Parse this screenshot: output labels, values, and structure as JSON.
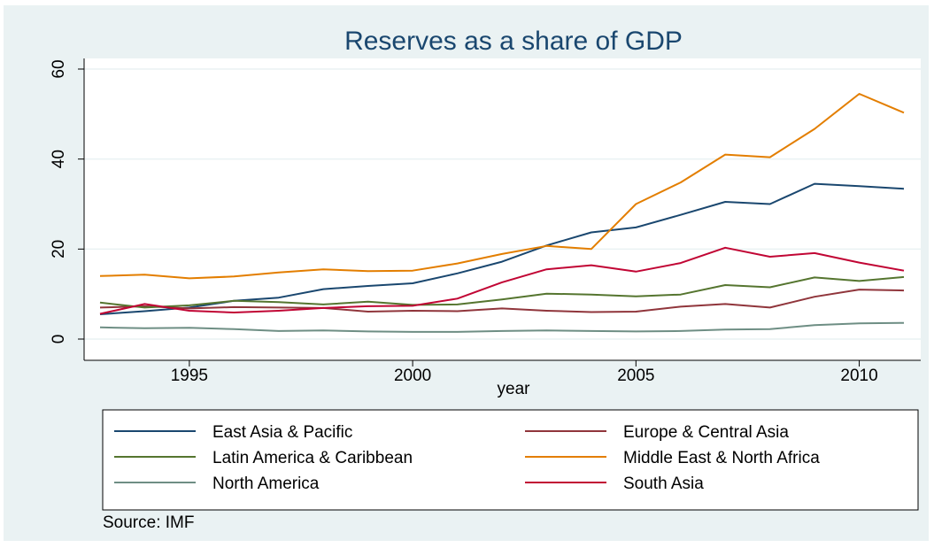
{
  "chart_data": {
    "type": "line",
    "title": "Reserves as a share of GDP",
    "xlabel": "year",
    "ylabel": "",
    "xlim": [
      1993,
      2011
    ],
    "ylim": [
      0,
      60
    ],
    "xticks": [
      1995,
      2000,
      2005,
      2010
    ],
    "yticks": [
      0,
      20,
      40,
      60
    ],
    "grid": true,
    "legend_position": "bottom",
    "note": "Source: IMF",
    "x": [
      1993,
      1994,
      1995,
      1996,
      1997,
      1998,
      1999,
      2000,
      2001,
      2002,
      2003,
      2004,
      2005,
      2006,
      2007,
      2008,
      2009,
      2010,
      2011
    ],
    "series": [
      {
        "name": "East Asia & Pacific",
        "color": "#1a476f",
        "values": [
          5.5,
          6.2,
          7.0,
          8.5,
          9.2,
          11.1,
          11.8,
          12.4,
          14.6,
          17.2,
          20.8,
          23.7,
          24.8,
          27.6,
          30.5,
          30.0,
          34.5,
          34.0,
          33.4
        ]
      },
      {
        "name": "Europe & Central Asia",
        "color": "#90353b",
        "values": [
          7.0,
          7.3,
          6.8,
          7.1,
          7.0,
          6.9,
          6.1,
          6.3,
          6.2,
          6.8,
          6.3,
          6.0,
          6.1,
          7.2,
          7.8,
          7.0,
          9.4,
          11.0,
          10.8
        ]
      },
      {
        "name": "Latin America & Caribbean",
        "color": "#55752f",
        "values": [
          8.1,
          7.0,
          7.5,
          8.5,
          8.2,
          7.7,
          8.3,
          7.6,
          7.7,
          8.8,
          10.1,
          9.9,
          9.5,
          9.9,
          12.0,
          11.5,
          13.7,
          12.9,
          13.8
        ]
      },
      {
        "name": "Middle East & North Africa",
        "color": "#e37e00",
        "values": [
          14.0,
          14.3,
          13.5,
          13.9,
          14.8,
          15.5,
          15.1,
          15.2,
          16.8,
          18.9,
          20.7,
          20.0,
          30.0,
          34.8,
          41.0,
          40.4,
          46.7,
          54.5,
          50.3
        ]
      },
      {
        "name": "North America",
        "color": "#6e8e84",
        "values": [
          2.6,
          2.4,
          2.5,
          2.2,
          1.8,
          1.9,
          1.7,
          1.6,
          1.6,
          1.8,
          1.9,
          1.8,
          1.7,
          1.8,
          2.1,
          2.2,
          3.1,
          3.5,
          3.6
        ]
      },
      {
        "name": "South Asia",
        "color": "#c10534",
        "values": [
          5.6,
          7.8,
          6.3,
          5.9,
          6.3,
          6.9,
          7.3,
          7.4,
          9.0,
          12.6,
          15.5,
          16.4,
          15.0,
          16.9,
          20.3,
          18.3,
          19.1,
          17.0,
          15.2
        ]
      }
    ]
  }
}
